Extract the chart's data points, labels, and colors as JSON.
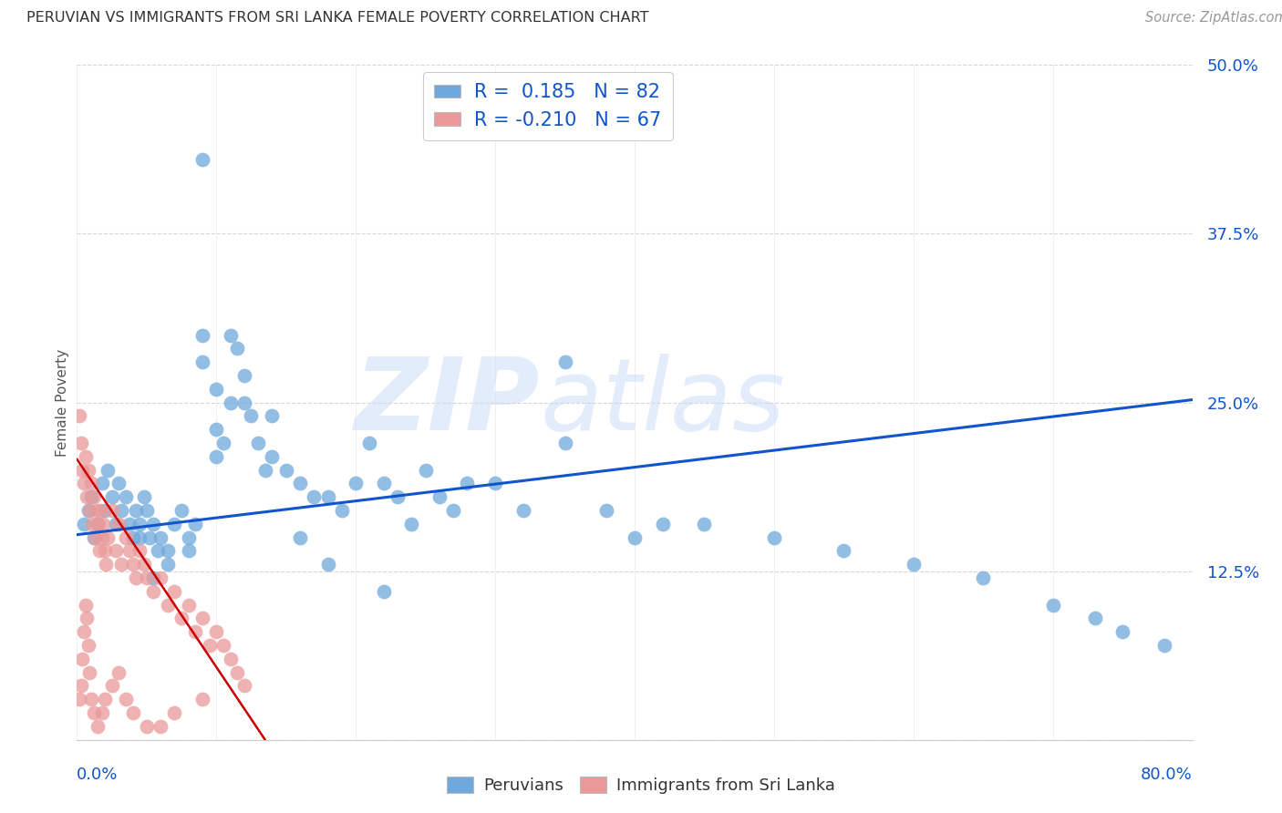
{
  "title": "PERUVIAN VS IMMIGRANTS FROM SRI LANKA FEMALE POVERTY CORRELATION CHART",
  "source": "Source: ZipAtlas.com",
  "ylabel": "Female Poverty",
  "ytick_vals": [
    0.0,
    0.125,
    0.25,
    0.375,
    0.5
  ],
  "ytick_labels": [
    "",
    "12.5%",
    "25.0%",
    "37.5%",
    "50.0%"
  ],
  "xlim": [
    0.0,
    0.8
  ],
  "ylim": [
    0.0,
    0.5
  ],
  "blue_color": "#6fa8dc",
  "pink_color": "#ea9999",
  "trend_blue_color": "#1155cc",
  "trend_pink_color": "#cc0000",
  "axis_label_color": "#1155cc",
  "title_color": "#333333",
  "source_color": "#999999",
  "legend_label_color": "#1155cc",
  "bottom_legend_color": "#333333",
  "grid_color": "#cccccc",
  "background_color": "#ffffff",
  "watermark_color": "#c9daf8",
  "blue_trend_x": [
    0.0,
    0.8
  ],
  "blue_trend_y": [
    0.152,
    0.252
  ],
  "pink_trend_x": [
    0.0,
    0.135
  ],
  "pink_trend_y": [
    0.208,
    0.0
  ],
  "peruvians_x": [
    0.005,
    0.008,
    0.01,
    0.012,
    0.015,
    0.018,
    0.02,
    0.022,
    0.025,
    0.028,
    0.03,
    0.032,
    0.035,
    0.038,
    0.04,
    0.042,
    0.045,
    0.048,
    0.05,
    0.052,
    0.055,
    0.058,
    0.06,
    0.065,
    0.07,
    0.075,
    0.08,
    0.085,
    0.09,
    0.09,
    0.1,
    0.1,
    0.105,
    0.11,
    0.115,
    0.12,
    0.125,
    0.13,
    0.135,
    0.14,
    0.15,
    0.16,
    0.17,
    0.18,
    0.19,
    0.2,
    0.21,
    0.22,
    0.23,
    0.24,
    0.25,
    0.26,
    0.27,
    0.28,
    0.3,
    0.32,
    0.35,
    0.38,
    0.4,
    0.42,
    0.45,
    0.5,
    0.55,
    0.6,
    0.65,
    0.7,
    0.73,
    0.75,
    0.78,
    0.045,
    0.055,
    0.065,
    0.08,
    0.09,
    0.1,
    0.11,
    0.12,
    0.14,
    0.16,
    0.18,
    0.22,
    0.35
  ],
  "peruvians_y": [
    0.16,
    0.17,
    0.18,
    0.15,
    0.16,
    0.19,
    0.17,
    0.2,
    0.18,
    0.16,
    0.19,
    0.17,
    0.18,
    0.16,
    0.15,
    0.17,
    0.16,
    0.18,
    0.17,
    0.15,
    0.16,
    0.14,
    0.15,
    0.14,
    0.16,
    0.17,
    0.15,
    0.16,
    0.28,
    0.3,
    0.21,
    0.23,
    0.22,
    0.3,
    0.29,
    0.27,
    0.24,
    0.22,
    0.2,
    0.24,
    0.2,
    0.19,
    0.18,
    0.18,
    0.17,
    0.19,
    0.22,
    0.19,
    0.18,
    0.16,
    0.2,
    0.18,
    0.17,
    0.19,
    0.19,
    0.17,
    0.22,
    0.17,
    0.15,
    0.16,
    0.16,
    0.15,
    0.14,
    0.13,
    0.12,
    0.1,
    0.09,
    0.08,
    0.07,
    0.15,
    0.12,
    0.13,
    0.14,
    0.43,
    0.26,
    0.25,
    0.25,
    0.21,
    0.15,
    0.13,
    0.11,
    0.28
  ],
  "srilanka_x": [
    0.002,
    0.003,
    0.004,
    0.005,
    0.006,
    0.007,
    0.008,
    0.009,
    0.01,
    0.011,
    0.012,
    0.013,
    0.014,
    0.015,
    0.016,
    0.017,
    0.018,
    0.019,
    0.02,
    0.021,
    0.022,
    0.025,
    0.028,
    0.03,
    0.032,
    0.035,
    0.038,
    0.04,
    0.042,
    0.045,
    0.048,
    0.05,
    0.055,
    0.06,
    0.065,
    0.07,
    0.075,
    0.08,
    0.085,
    0.09,
    0.095,
    0.1,
    0.105,
    0.11,
    0.115,
    0.12,
    0.002,
    0.003,
    0.004,
    0.005,
    0.006,
    0.007,
    0.008,
    0.009,
    0.01,
    0.012,
    0.015,
    0.018,
    0.02,
    0.025,
    0.03,
    0.035,
    0.04,
    0.05,
    0.06,
    0.07,
    0.09
  ],
  "srilanka_y": [
    0.24,
    0.22,
    0.2,
    0.19,
    0.21,
    0.18,
    0.2,
    0.17,
    0.19,
    0.16,
    0.18,
    0.15,
    0.17,
    0.16,
    0.14,
    0.17,
    0.15,
    0.16,
    0.14,
    0.13,
    0.15,
    0.17,
    0.14,
    0.16,
    0.13,
    0.15,
    0.14,
    0.13,
    0.12,
    0.14,
    0.13,
    0.12,
    0.11,
    0.12,
    0.1,
    0.11,
    0.09,
    0.1,
    0.08,
    0.09,
    0.07,
    0.08,
    0.07,
    0.06,
    0.05,
    0.04,
    0.03,
    0.04,
    0.06,
    0.08,
    0.1,
    0.09,
    0.07,
    0.05,
    0.03,
    0.02,
    0.01,
    0.02,
    0.03,
    0.04,
    0.05,
    0.03,
    0.02,
    0.01,
    0.01,
    0.02,
    0.03
  ]
}
